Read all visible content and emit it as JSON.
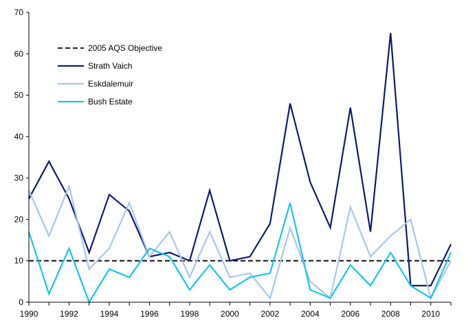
{
  "chart_data": {
    "type": "line",
    "title": "",
    "xlabel": "",
    "ylabel": "",
    "x": [
      1990,
      1991,
      1992,
      1993,
      1994,
      1995,
      1996,
      1997,
      1998,
      1999,
      2000,
      2001,
      2002,
      2003,
      2004,
      2005,
      2006,
      2007,
      2008,
      2009,
      2010,
      2011
    ],
    "xlim": [
      1990,
      2011
    ],
    "ylim": [
      0,
      70
    ],
    "x_ticks": [
      "1990",
      "1992",
      "1994",
      "1996",
      "1998",
      "2000",
      "2002",
      "2004",
      "2006",
      "2008",
      "2010"
    ],
    "y_ticks": [
      "0",
      "10",
      "20",
      "30",
      "40",
      "50",
      "60",
      "70"
    ],
    "grid": false,
    "legend_position": "top-left",
    "series": [
      {
        "name": "2005 AQS Objective",
        "color": "#000000",
        "dash": true,
        "values": [
          10,
          10,
          10,
          10,
          10,
          10,
          10,
          10,
          10,
          10,
          10,
          10,
          10,
          10,
          10,
          10,
          10,
          10,
          10,
          10,
          10,
          10
        ]
      },
      {
        "name": "Strath Vaich",
        "color": "#0d1a6e",
        "dash": false,
        "values": [
          25,
          34,
          25,
          12,
          26,
          22,
          11,
          12,
          10,
          27,
          10,
          11,
          19,
          48,
          29,
          18,
          47,
          17,
          65,
          4,
          4,
          14
        ]
      },
      {
        "name": "Eskdalemuir",
        "color": "#a9c6ee",
        "dash": false,
        "values": [
          27,
          16,
          28,
          8,
          13,
          24,
          11,
          17,
          6,
          17,
          6,
          7,
          1,
          18,
          5,
          1,
          23,
          11,
          16,
          20,
          1,
          10
        ]
      },
      {
        "name": "Bush Estate",
        "color": "#19c4ec",
        "dash": false,
        "values": [
          17,
          2,
          13,
          0,
          8,
          6,
          13,
          11,
          3,
          9,
          3,
          6,
          7,
          24,
          3,
          1,
          9,
          4,
          12,
          4,
          1,
          12
        ]
      }
    ]
  }
}
